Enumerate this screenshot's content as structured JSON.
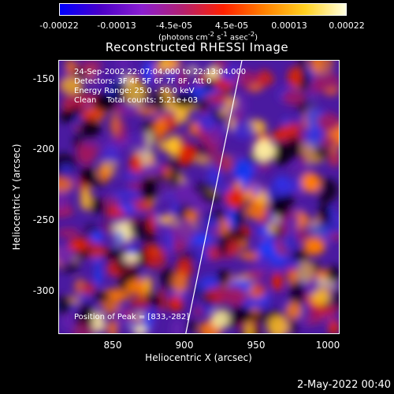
{
  "colorbar": {
    "tick_labels": [
      "-0.00022",
      "-0.00013",
      "-4.5e-05",
      "4.5e-05",
      "0.00013",
      "0.00022"
    ],
    "units_main": "(photons cm",
    "units_exp1": "-2",
    "units_mid": " s",
    "units_exp2": "-1",
    "units_tail": " asec",
    "units_exp3": "-2",
    "units_end": ")",
    "colors": [
      "#0000ff",
      "#4b00c8",
      "#8a1ed0",
      "#b32070",
      "#ff2000",
      "#ff8000",
      "#ffd020",
      "#ffffe0"
    ]
  },
  "title": "Reconstructed RHESSI Image",
  "info": {
    "time_range": "24-Sep-2002 22:07:04.000 to 22:13:04.000",
    "detectors": "Detectors: 3F 4F 5F 6F 7F 8F, Att 0",
    "energy": "Energy Range: 25.0 - 50.0 keV",
    "clean": "Clean    Total counts: 5.21e+03",
    "peak": "Position of Peak = [833,-282]"
  },
  "axes": {
    "ylabel": "Heliocentric Y (arcsec)",
    "xlabel": "Heliocentric X (arcsec)",
    "yticks": [
      "-150",
      "-200",
      "-250",
      "-300"
    ],
    "xticks": [
      "850",
      "900",
      "950",
      "1000"
    ]
  },
  "timestamp": "2-May-2022 00:40"
}
